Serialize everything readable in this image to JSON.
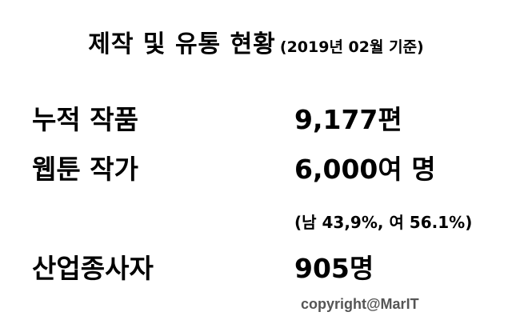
{
  "title": {
    "main": "제작 및 유통 현황",
    "sub": "(2019년 02월 기준)"
  },
  "rows": [
    {
      "label": "누적 작품",
      "value": "9,177편"
    },
    {
      "label": "웹툰 작가",
      "value": "6,000여 명",
      "note": "(남 43,9%, 여 56.1%)"
    },
    {
      "label": "산업종사자",
      "value": "905명"
    }
  ],
  "copyright": "copyright@MarIT"
}
